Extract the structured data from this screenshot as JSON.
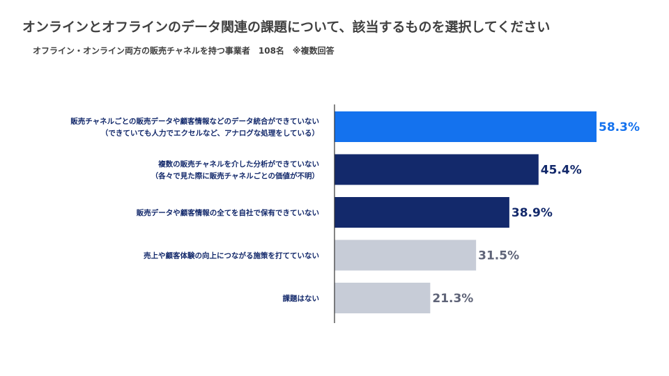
{
  "title": "オンラインとオフラインのデータ関連の課題について、該当するものを選択してください",
  "subtitle": "オフライン・オンライン両方の販売チャネルを持つ事業者　108名　※複数回答",
  "colors": {
    "highlight": "#1472ee",
    "dark": "#13296b",
    "light": "#c7ccd7",
    "label_dark": "#13296b",
    "label_light": "#5f6478",
    "axis": "#333333"
  },
  "chart_data": {
    "type": "bar",
    "orientation": "horizontal",
    "unit": "%",
    "xlim": [
      0,
      100
    ],
    "grid": false,
    "categories": [
      [
        "販売チャネルごとの販売データや顧客情報などのデータ統合ができていない",
        "（できていても人力でエクセルなど、アナログな処理をしている）"
      ],
      [
        "複数の販売チャネルを介した分析ができていない",
        "（各々で見た際に販売チャネルごとの価値が不明）"
      ],
      [
        "販売データや顧客情報の全てを自社で保有できていない"
      ],
      [
        "売上や顧客体験の向上につながる施策を打てていない"
      ],
      [
        "課題はない"
      ]
    ],
    "values": [
      58.3,
      45.4,
      38.9,
      31.5,
      21.3
    ],
    "value_labels": [
      "58.3%",
      "45.4%",
      "38.9%",
      "31.5%",
      "21.3%"
    ],
    "bar_colors": [
      "highlight",
      "dark",
      "dark",
      "light",
      "light"
    ]
  }
}
